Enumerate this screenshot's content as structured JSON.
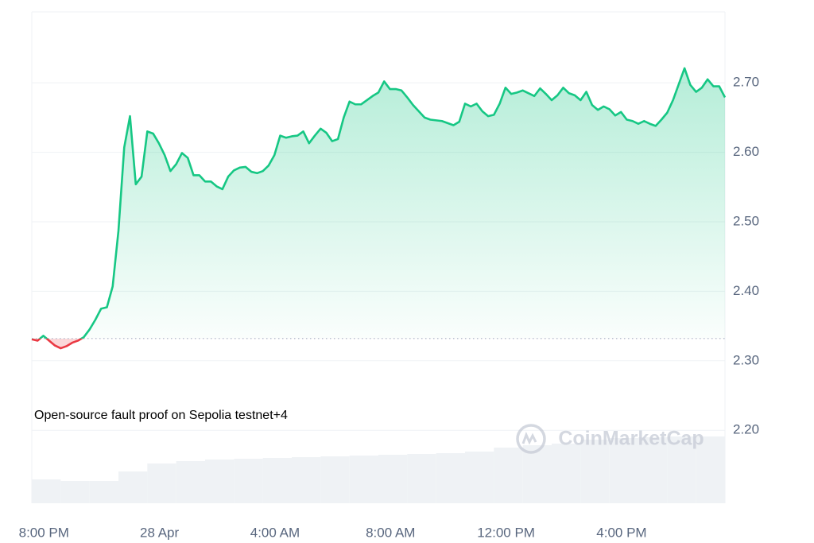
{
  "chart_data": {
    "type": "line",
    "color": "#16c784",
    "down_color": "#ea3943",
    "baseline": 2.332,
    "annotation": "Open-source fault proof on Sepolia testnet+4",
    "watermark": "CoinMarketCap",
    "xlim": [
      -0.2,
      23.8
    ],
    "xticks": [
      {
        "value": 0,
        "label": "8:00 PM"
      },
      {
        "value": 4,
        "label": "28 Apr"
      },
      {
        "value": 8,
        "label": "4:00 AM"
      },
      {
        "value": 12,
        "label": "8:00 AM"
      },
      {
        "value": 16,
        "label": "12:00 PM"
      },
      {
        "value": 20,
        "label": "4:00 PM"
      }
    ],
    "ylim": [
      2.095,
      2.802
    ],
    "yticks": [
      {
        "value": 2.2,
        "label": "2.20"
      },
      {
        "value": 2.3,
        "label": "2.30"
      },
      {
        "value": 2.4,
        "label": "2.40"
      },
      {
        "value": 2.5,
        "label": "2.50"
      },
      {
        "value": 2.6,
        "label": "2.60"
      },
      {
        "value": 2.7,
        "label": "2.70"
      }
    ],
    "grid": true,
    "x": [
      -0.2,
      0,
      0.2,
      0.4,
      0.6,
      0.8,
      1,
      1.2,
      1.4,
      1.6,
      1.8,
      2,
      2.2,
      2.4,
      2.6,
      2.8,
      3,
      3.2,
      3.4,
      3.6,
      3.8,
      4,
      4.2,
      4.4,
      4.6,
      4.8,
      5,
      5.2,
      5.4,
      5.6,
      5.8,
      6,
      6.2,
      6.4,
      6.6,
      6.8,
      7,
      7.2,
      7.4,
      7.6,
      7.8,
      8,
      8.2,
      8.4,
      8.6,
      8.8,
      9,
      9.2,
      9.4,
      9.6,
      9.8,
      10,
      10.2,
      10.4,
      10.6,
      10.8,
      11,
      11.2,
      11.4,
      11.6,
      11.8,
      12,
      12.2,
      12.4,
      12.6,
      12.8,
      13,
      13.2,
      13.4,
      13.6,
      13.8,
      14,
      14.2,
      14.4,
      14.6,
      14.8,
      15,
      15.2,
      15.4,
      15.6,
      15.8,
      16,
      16.2,
      16.4,
      16.6,
      16.8,
      17,
      17.2,
      17.4,
      17.6,
      17.8,
      18,
      18.2,
      18.4,
      18.6,
      18.8,
      19,
      19.2,
      19.4,
      19.6,
      19.8,
      20,
      20.2,
      20.4,
      20.6,
      20.8,
      21,
      21.2,
      21.4,
      21.6,
      21.8,
      22,
      22.2,
      22.4,
      22.6,
      22.8,
      23,
      23.2,
      23.4,
      23.6,
      23.8
    ],
    "values": [
      2.331,
      2.329,
      2.336,
      2.329,
      2.322,
      2.318,
      2.321,
      2.326,
      2.329,
      2.334,
      2.345,
      2.359,
      2.375,
      2.377,
      2.407,
      2.487,
      2.607,
      2.652,
      2.554,
      2.565,
      2.63,
      2.627,
      2.613,
      2.596,
      2.573,
      2.583,
      2.599,
      2.592,
      2.567,
      2.567,
      2.558,
      2.558,
      2.551,
      2.547,
      2.565,
      2.574,
      2.578,
      2.579,
      2.572,
      2.57,
      2.573,
      2.581,
      2.596,
      2.624,
      2.621,
      2.623,
      2.624,
      2.63,
      2.613,
      2.624,
      2.634,
      2.628,
      2.616,
      2.619,
      2.65,
      2.673,
      2.669,
      2.669,
      2.675,
      2.681,
      2.686,
      2.702,
      2.691,
      2.691,
      2.689,
      2.679,
      2.668,
      2.659,
      2.65,
      2.647,
      2.646,
      2.645,
      2.642,
      2.639,
      2.644,
      2.67,
      2.666,
      2.67,
      2.659,
      2.652,
      2.654,
      2.67,
      2.693,
      2.684,
      2.686,
      2.689,
      2.685,
      2.681,
      2.692,
      2.684,
      2.675,
      2.682,
      2.693,
      2.685,
      2.682,
      2.675,
      2.687,
      2.668,
      2.661,
      2.666,
      2.662,
      2.653,
      2.658,
      2.647,
      2.645,
      2.641,
      2.645,
      2.641,
      2.638,
      2.647,
      2.657,
      2.675,
      2.698,
      2.721,
      2.697,
      2.687,
      2.693,
      2.705,
      2.695,
      2.695,
      2.679
    ],
    "volume": {
      "color": "#eff2f5",
      "lim": [
        0,
        100
      ],
      "x": [
        -0.2,
        0.8,
        1.8,
        2.8,
        3.8,
        4.8,
        5.8,
        6.8,
        7.8,
        8.8,
        9.8,
        10.8,
        11.8,
        12.8,
        13.8,
        14.8,
        15.8,
        16.8,
        17.8,
        18.8,
        19.8,
        20.8,
        21.8,
        22.8
      ],
      "values": [
        30,
        28,
        28,
        40,
        50,
        53,
        55,
        56,
        57,
        58,
        59,
        60,
        61,
        62,
        63,
        65,
        70,
        73,
        75,
        80,
        82,
        83,
        84,
        84
      ]
    }
  }
}
